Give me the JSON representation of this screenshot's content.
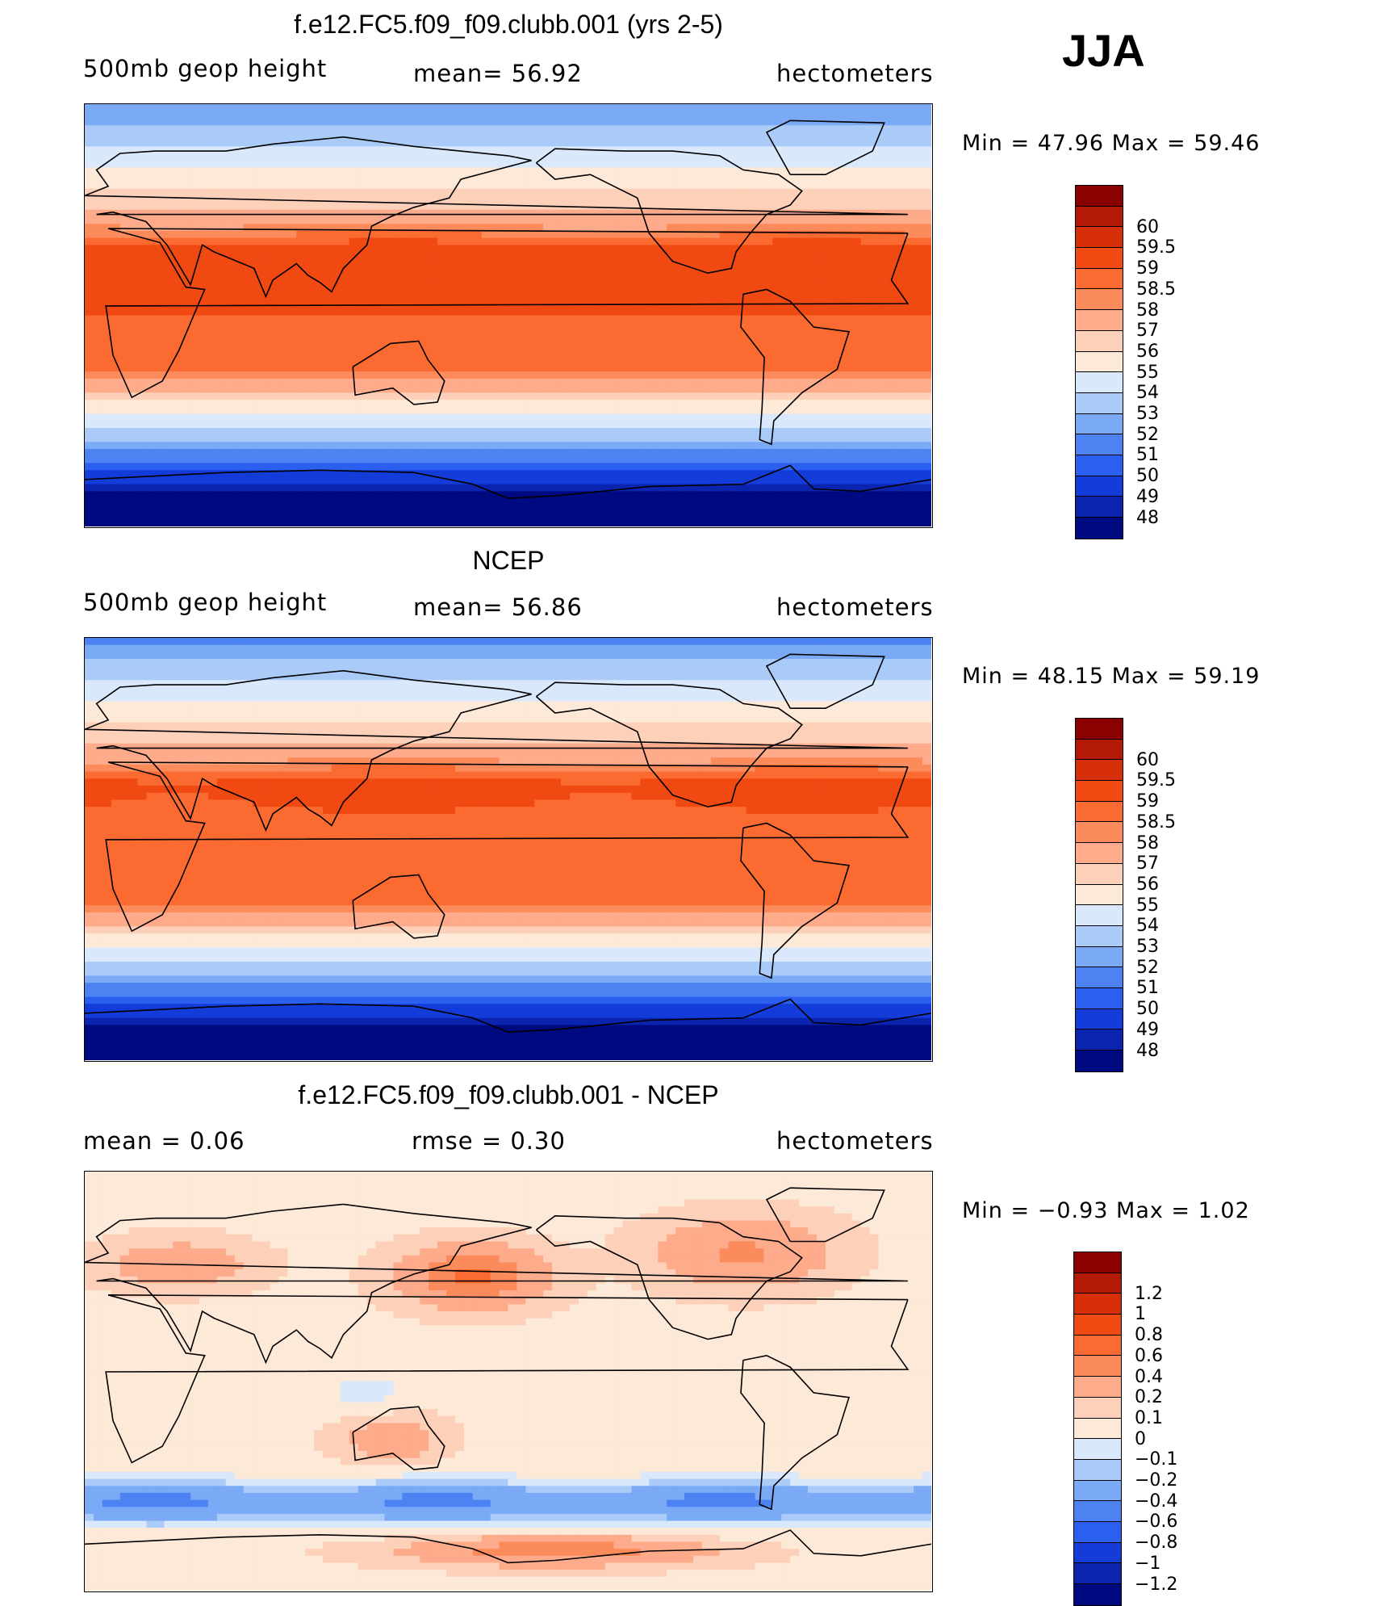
{
  "season": "JJA",
  "panels": [
    {
      "id": "model",
      "title": "f.e12.FC5.f09_f09.clubb.001 (yrs 2-5)",
      "left_text": "500mb  geop  height",
      "center_text": "mean=   56.92",
      "right_text": "hectometers",
      "minmax": "Min  =    47.96  Max  =    59.46",
      "field": "abs_model",
      "colorbar": {
        "labels": [
          "60",
          "59.5",
          "59",
          "58.5",
          "58",
          "57",
          "56",
          "55",
          "54",
          "53",
          "52",
          "51",
          "50",
          "49",
          "48"
        ],
        "colors": [
          "#8b0000",
          "#b31a05",
          "#d62f0a",
          "#f04912",
          "#fb6a30",
          "#fc8b5c",
          "#fdab8a",
          "#fdd0b9",
          "#fde9d8",
          "#d9e9fb",
          "#aacbf8",
          "#7aa9f5",
          "#4c82f2",
          "#2a5ff0",
          "#133cd9",
          "#0a24b0",
          "#000a80"
        ]
      }
    },
    {
      "id": "obs",
      "title": "NCEP",
      "left_text": "500mb  geop  height",
      "center_text": "mean=   56.86",
      "right_text": "hectometers",
      "minmax": "Min  =    48.15  Max  =    59.19",
      "field": "abs_obs",
      "colorbar": {
        "labels": [
          "60",
          "59.5",
          "59",
          "58.5",
          "58",
          "57",
          "56",
          "55",
          "54",
          "53",
          "52",
          "51",
          "50",
          "49",
          "48"
        ],
        "colors": [
          "#8b0000",
          "#b31a05",
          "#d62f0a",
          "#f04912",
          "#fb6a30",
          "#fc8b5c",
          "#fdab8a",
          "#fdd0b9",
          "#fde9d8",
          "#d9e9fb",
          "#aacbf8",
          "#7aa9f5",
          "#4c82f2",
          "#2a5ff0",
          "#133cd9",
          "#0a24b0",
          "#000a80"
        ]
      }
    },
    {
      "id": "diff",
      "title": "f.e12.FC5.f09_f09.clubb.001 - NCEP",
      "left_text": "mean  =     0.06",
      "center_text": "rmse  =     0.30",
      "right_text": "hectometers",
      "minmax": "Min  =   −0.93  Max  =     1.02",
      "field": "diff",
      "colorbar": {
        "labels": [
          "1.2",
          "1",
          "0.8",
          "0.6",
          "0.4",
          "0.2",
          "0.1",
          "0",
          "−0.1",
          "−0.2",
          "−0.4",
          "−0.6",
          "−0.8",
          "−1",
          "−1.2"
        ],
        "colors": [
          "#8b0000",
          "#b31a05",
          "#d62f0a",
          "#f04912",
          "#fb6a30",
          "#fc8b5c",
          "#fdab8a",
          "#fdd0b9",
          "#fde9d8",
          "#d9e9fb",
          "#aacbf8",
          "#7aa9f5",
          "#4c82f2",
          "#2a5ff0",
          "#133cd9",
          "#0a24b0",
          "#000a80"
        ]
      }
    }
  ]
}
